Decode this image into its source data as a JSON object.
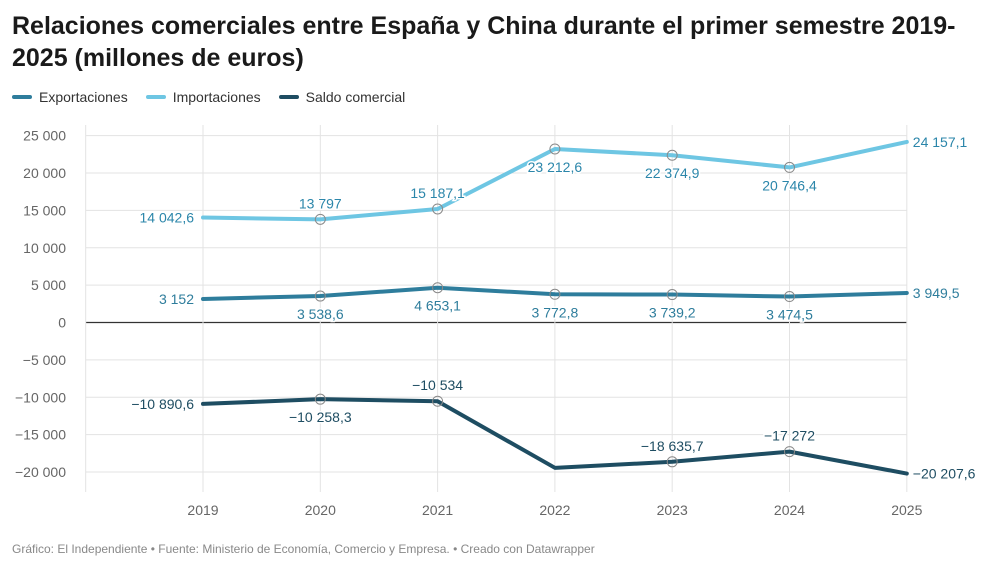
{
  "title": "Relaciones comerciales entre España y China durante el primer semestre 2019-2025 (millones de euros)",
  "footer": {
    "source_line": "Gráfico: El Independiente • Fuente: Ministerio de Economía, Comercio y Empresa. • Creado con Datawrapper"
  },
  "chart_data": {
    "type": "line",
    "title": "Relaciones comerciales entre España y China durante el primer semestre 2019-2025 (millones de euros)",
    "xlabel": "",
    "ylabel": "",
    "x": [
      "2019",
      "2020",
      "2021",
      "2022",
      "2023",
      "2024",
      "2025"
    ],
    "ylim": [
      -25000,
      28000
    ],
    "yticks": [
      25000,
      20000,
      15000,
      10000,
      5000,
      0,
      -5000,
      -10000,
      -15000,
      -20000
    ],
    "ytick_labels": [
      "25 000",
      "20 000",
      "15 000",
      "10 000",
      "5 000",
      "0",
      "−5 000",
      "−10 000",
      "−15 000",
      "−20 000"
    ],
    "grid": true,
    "legend_position": "top-left",
    "series": [
      {
        "name": "Exportaciones",
        "color": "#2e7d9c",
        "values": [
          3152,
          3538.6,
          4653.1,
          3772.8,
          3739.2,
          3474.5,
          3949.5
        ],
        "labels": [
          "3 152",
          "3 538,6",
          "4 653,1",
          "3 772,8",
          "3 739,2",
          "3 474,5",
          "3 949,5"
        ],
        "label_positions": [
          "left",
          "below",
          "below",
          "below",
          "below",
          "below",
          "right"
        ]
      },
      {
        "name": "Importaciones",
        "color": "#6ec6e3",
        "values": [
          14042.6,
          13797,
          15187.1,
          23212.6,
          22374.9,
          20746.4,
          24157.1
        ],
        "labels": [
          "14 042,6",
          "13 797",
          "15 187,1",
          "23 212,6",
          "22 374,9",
          "20 746,4",
          "24 157,1"
        ],
        "label_positions": [
          "left",
          "above",
          "above",
          "below",
          "below",
          "below",
          "right"
        ]
      },
      {
        "name": "Saldo comercial",
        "color": "#1e4d62",
        "values": [
          -10890.6,
          -10258.3,
          -10534,
          -19440.8,
          -18635.7,
          -17272,
          -20207.6
        ],
        "labels": [
          "−10 890,6",
          "−10 258,3",
          "−10 534",
          "",
          "−18 635,7",
          "−17 272",
          "−20 207,6"
        ],
        "label_positions": [
          "left",
          "below",
          "above",
          "none",
          "above",
          "above",
          "right"
        ]
      }
    ]
  }
}
